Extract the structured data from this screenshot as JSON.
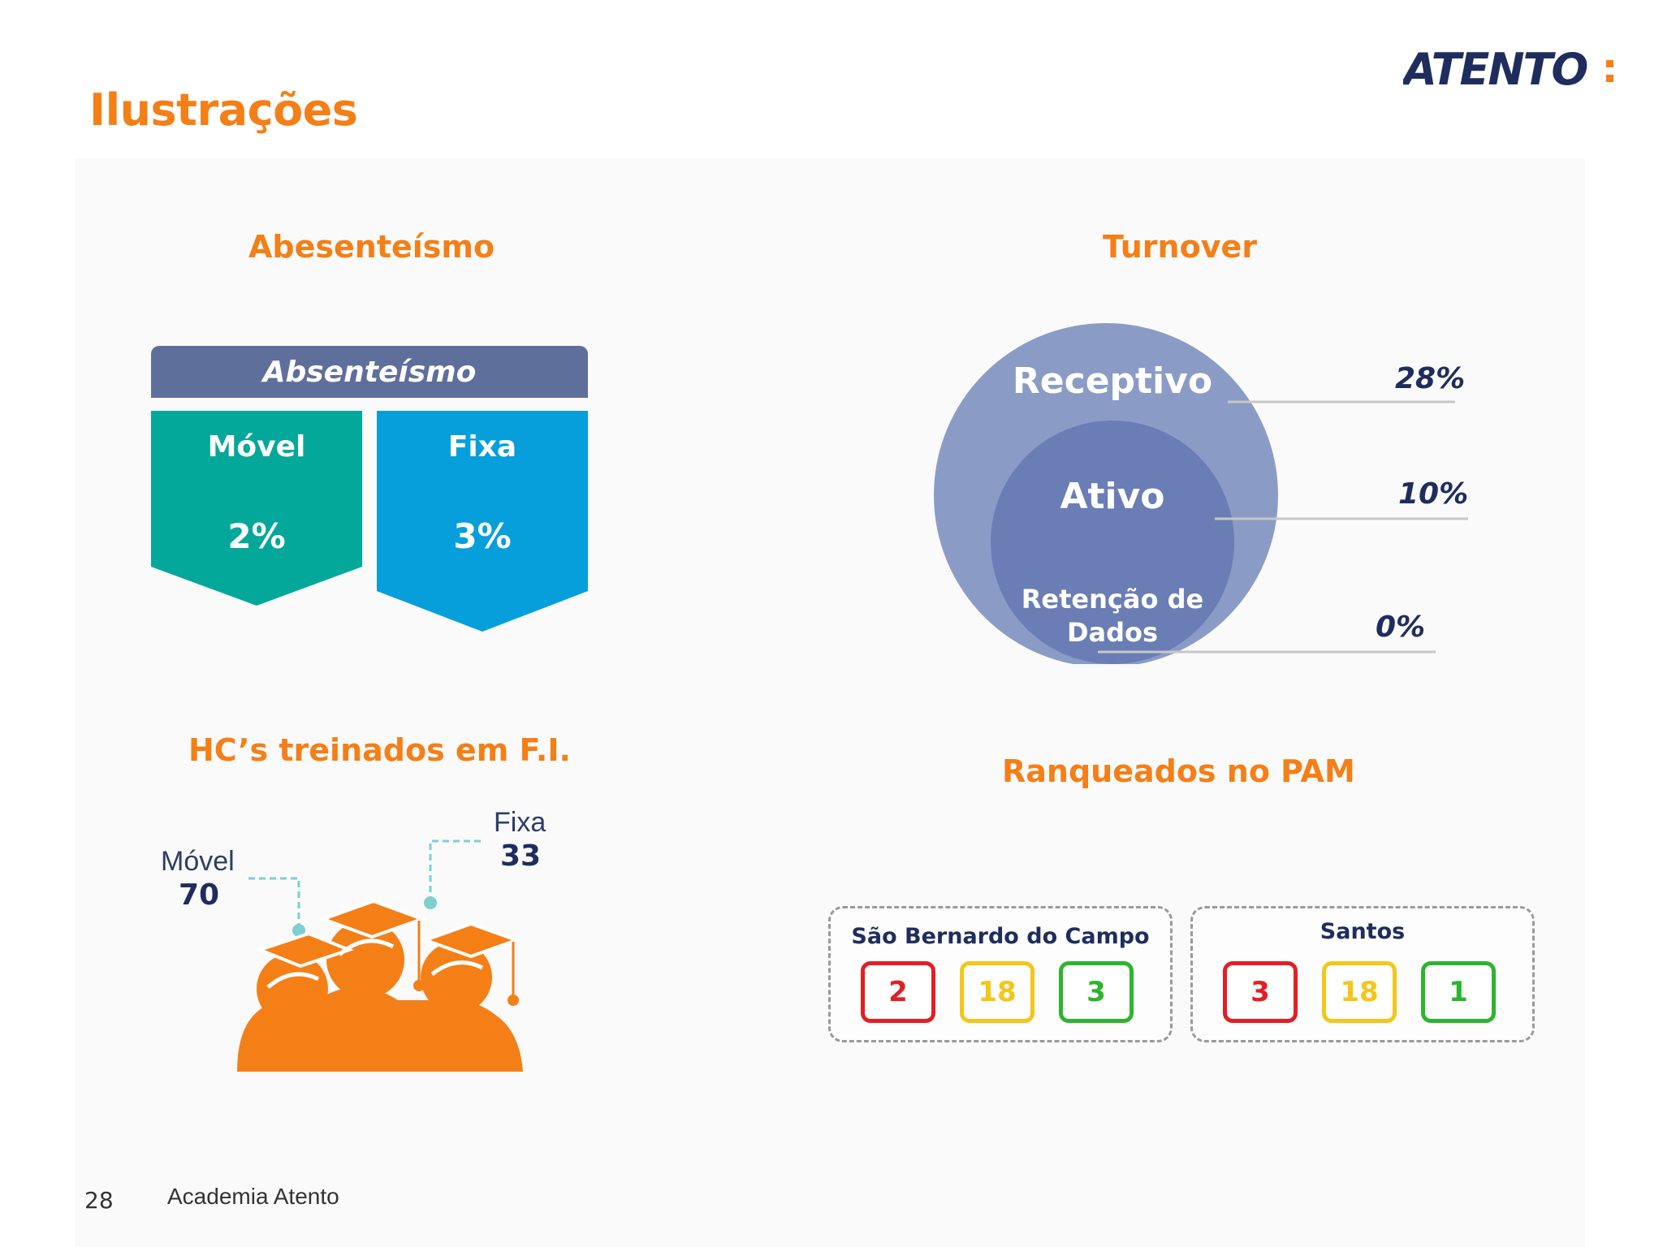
{
  "slide": {
    "title": "Ilustrações",
    "logo_text": "ATENTO:",
    "page_number": "28",
    "footer": "Academia Atento"
  },
  "absenteismo": {
    "section_title": "Abesenteísmo",
    "header": "Absenteísmo",
    "items": [
      {
        "label": "Móvel",
        "value": "2%"
      },
      {
        "label": "Fixa",
        "value": "3%"
      }
    ]
  },
  "turnover": {
    "section_title": "Turnover",
    "layers": [
      {
        "label": "Receptivo",
        "value": "28%"
      },
      {
        "label": "Ativo",
        "value": "10%"
      },
      {
        "label": "Retenção de Dados",
        "value": "0%"
      }
    ]
  },
  "hc": {
    "section_title": "HC’s treinados em F.I.",
    "items": [
      {
        "label": "Móvel",
        "value": "70"
      },
      {
        "label": "Fixa",
        "value": "33"
      }
    ]
  },
  "pam": {
    "section_title": "Ranqueados no PAM",
    "groups": [
      {
        "name": "São Bernardo do Campo",
        "values": [
          "2",
          "18",
          "3"
        ]
      },
      {
        "name": "Santos",
        "values": [
          "3",
          "18",
          "1"
        ]
      }
    ]
  },
  "colors": {
    "accent": "#f57f17",
    "navy": "#1f2d5e",
    "teal": "#04a89a",
    "blue": "#069fdb",
    "red": "#e31e24",
    "yellow": "#f5c518",
    "green": "#2db52d"
  }
}
